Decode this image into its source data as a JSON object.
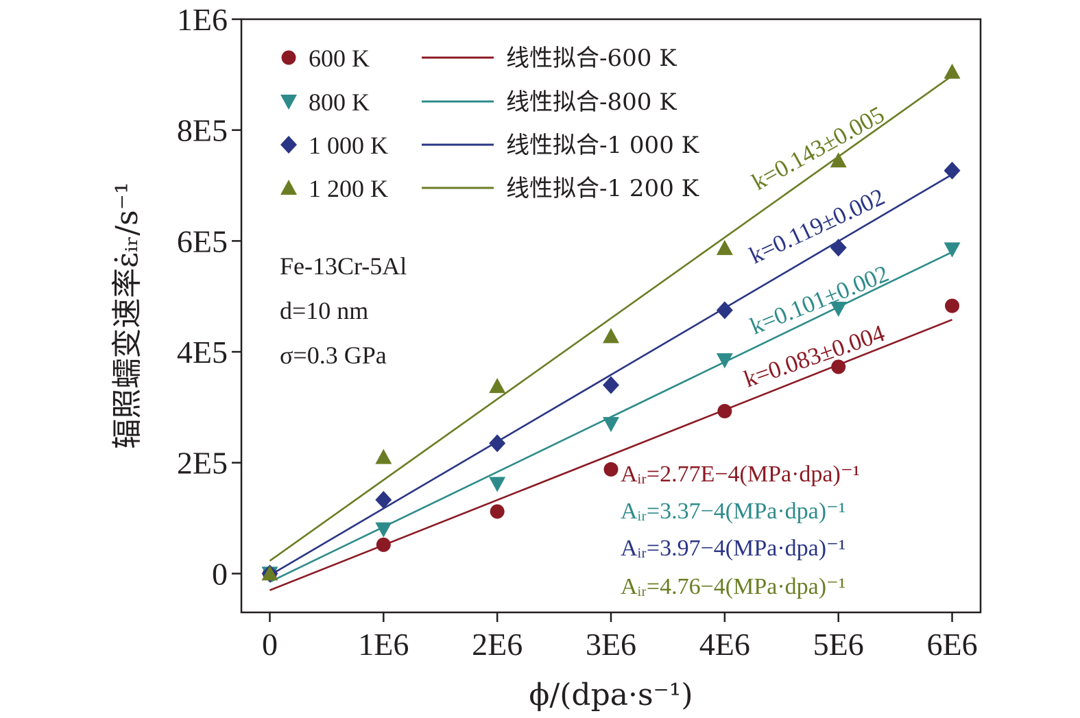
{
  "chart_data": {
    "type": "scatter",
    "xlabel": "ϕ/(dpa·s⁻¹)",
    "ylabel": "辐照蠕变速率ε̇ᵢᵣ/s⁻¹",
    "xlim": [
      -250000,
      6250000
    ],
    "ylim": [
      -70000,
      1000000
    ],
    "x_ticks": [
      0,
      1000000,
      2000000,
      3000000,
      4000000,
      5000000,
      6000000
    ],
    "x_tick_labels": [
      "0",
      "1E6",
      "2E6",
      "3E6",
      "4E6",
      "5E6",
      "6E6"
    ],
    "y_ticks": [
      0,
      200000,
      400000,
      600000,
      800000,
      1000000
    ],
    "y_tick_labels": [
      "0",
      "2E5",
      "4E5",
      "6E5",
      "8E5",
      "1E6"
    ],
    "grid": false,
    "legend_position": "top-left",
    "series": [
      {
        "name": "600 K",
        "fit_name": "线性拟合-600 K",
        "marker": "circle",
        "color": "#8b1a24",
        "x": [
          0,
          1000000,
          2000000,
          3000000,
          4000000,
          5000000,
          6000000
        ],
        "y": [
          0,
          52000,
          112000,
          188000,
          293000,
          373000,
          483000
        ],
        "fit": [
          [
            0,
            -30000
          ],
          [
            6000000,
            458000
          ]
        ],
        "slope_label": "k=0.083±0.004",
        "air_label": "Aᵢᵣ=2.77E−4(MPa·dpa)⁻¹"
      },
      {
        "name": "800 K",
        "fit_name": "线性拟合-800 K",
        "marker": "triangle-down",
        "color": "#2e8b8b",
        "x": [
          0,
          1000000,
          2000000,
          3000000,
          4000000,
          5000000,
          6000000
        ],
        "y": [
          0,
          80000,
          162000,
          270000,
          385000,
          478000,
          585000
        ],
        "fit": [
          [
            0,
            -15000
          ],
          [
            6000000,
            580000
          ]
        ],
        "slope_label": "k=0.101±0.002",
        "air_label": "Aᵢᵣ=3.37−4(MPa·dpa)⁻¹"
      },
      {
        "name": "1 000 K",
        "fit_name": "线性拟合-1 000 K",
        "marker": "diamond",
        "color": "#2a3585",
        "x": [
          0,
          1000000,
          2000000,
          3000000,
          4000000,
          5000000,
          6000000
        ],
        "y": [
          0,
          133000,
          235000,
          340000,
          475000,
          588000,
          727000
        ],
        "fit": [
          [
            0,
            -3000
          ],
          [
            6000000,
            720000
          ]
        ],
        "slope_label": "k=0.119±0.002",
        "air_label": "Aᵢᵣ=3.97−4(MPa·dpa)⁻¹"
      },
      {
        "name": "1 200 K",
        "fit_name": "线性拟合-1 200 K",
        "marker": "triangle-up",
        "color": "#6b7d24",
        "x": [
          0,
          1000000,
          2000000,
          3000000,
          4000000,
          5000000,
          6000000
        ],
        "y": [
          0,
          210000,
          338000,
          428000,
          587000,
          745000,
          905000
        ],
        "fit": [
          [
            0,
            23000
          ],
          [
            6000000,
            898000
          ]
        ],
        "slope_label": "k=0.143±0.005",
        "air_label": "Aᵢᵣ=4.76−4(MPa·dpa)⁻¹"
      }
    ],
    "annotations": {
      "material": "Fe-13Cr-5Al",
      "grain_size": "d=10 nm",
      "stress": "σ=0.3 GPa"
    }
  }
}
